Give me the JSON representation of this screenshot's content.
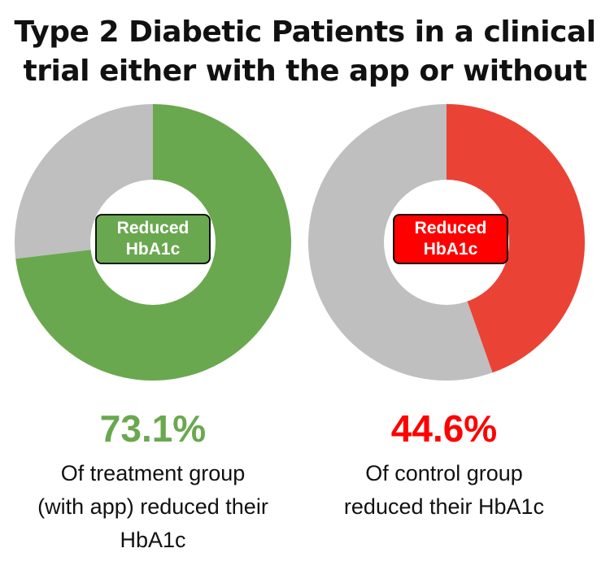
{
  "title": {
    "line1": "Type 2 Diabetic Patients in a clinical",
    "line2": "trial either with the app or without"
  },
  "colors": {
    "treatment": "#6aa84f",
    "control": "#ea4335",
    "control_text": "#ff0000",
    "remainder": "#bfbfbf",
    "label_treatment_bg": "#6aa84f",
    "label_control_bg": "#ff0000"
  },
  "chart_data": [
    {
      "type": "pie",
      "style": "donut",
      "label": [
        "Reduced",
        "HbA1c"
      ],
      "value_percent": 73.1,
      "value_text": "73.1%",
      "description": [
        "Of treatment group",
        "(with app) reduced their",
        "HbA1c"
      ]
    },
    {
      "type": "pie",
      "style": "donut",
      "label": [
        "Reduced",
        "HbA1c"
      ],
      "value_percent": 44.6,
      "value_text": "44.6%",
      "description": [
        "Of control group",
        "reduced their HbA1c"
      ]
    }
  ]
}
